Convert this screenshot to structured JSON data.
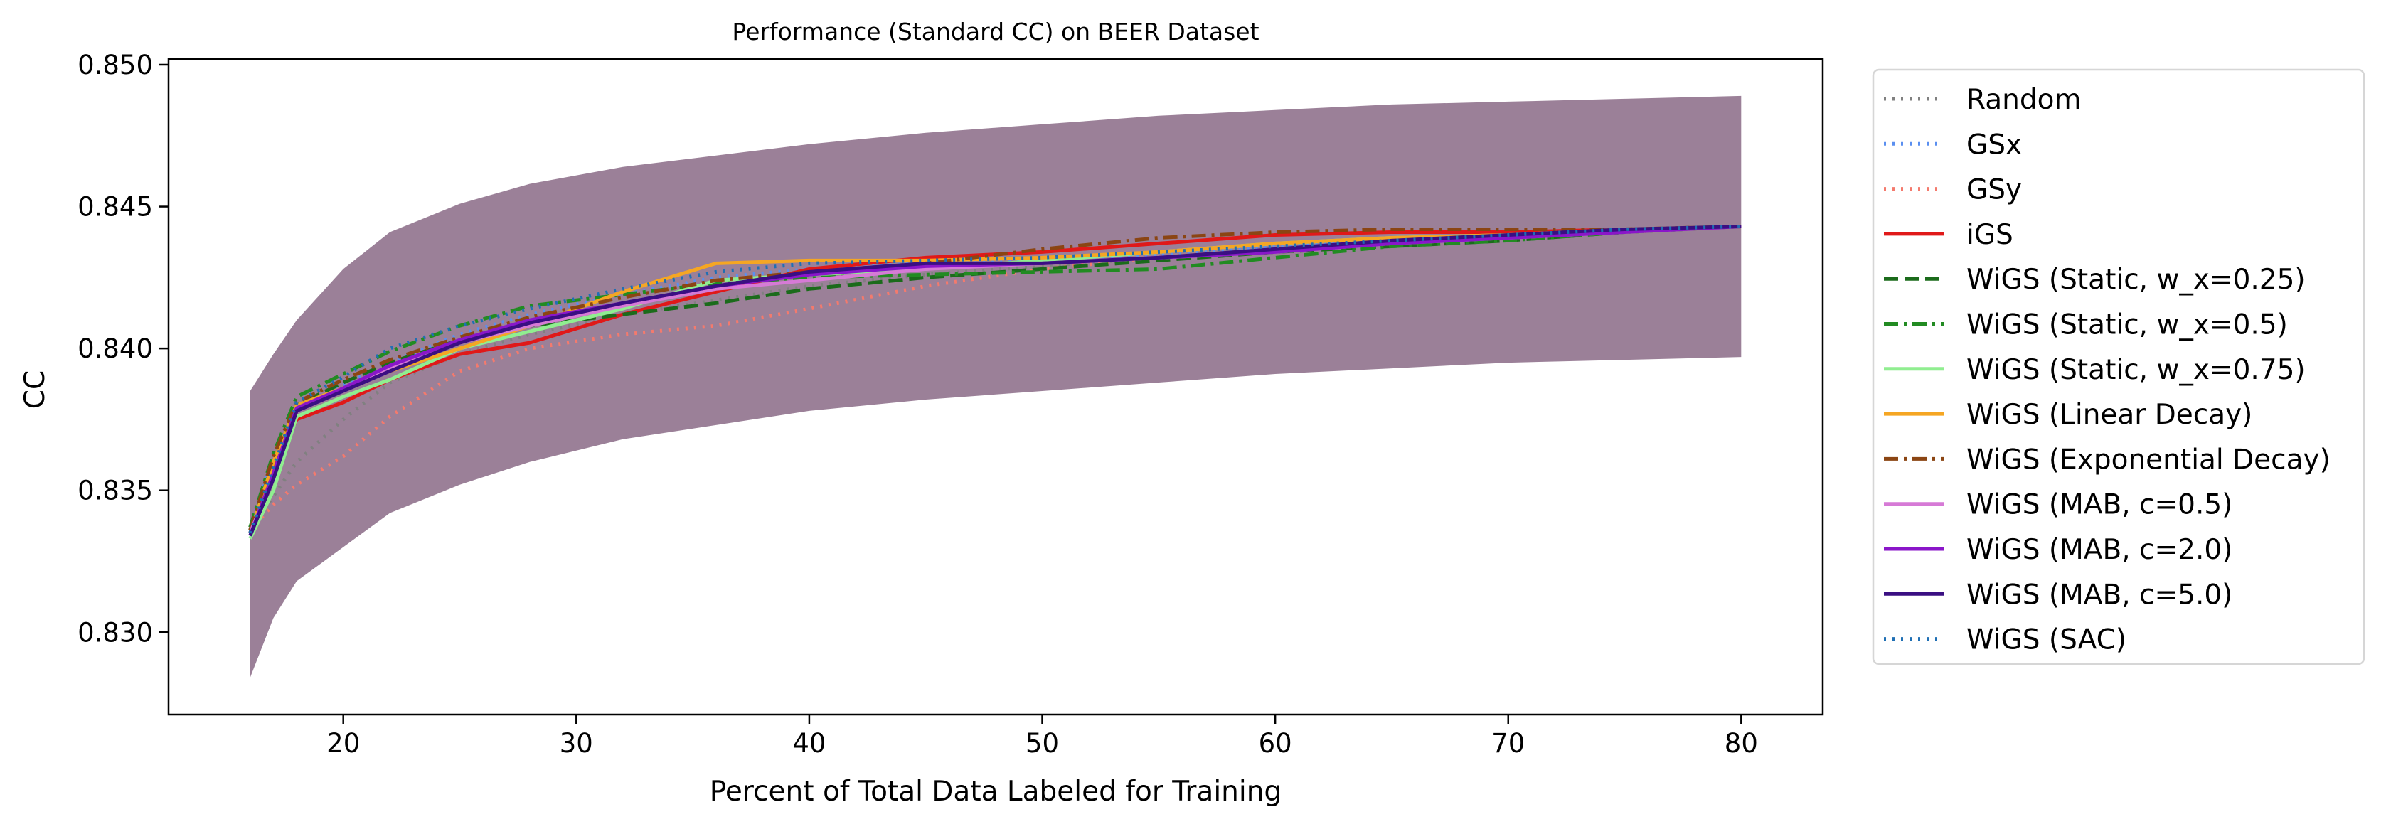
{
  "chart_data": {
    "type": "line",
    "title": "Performance (Standard CC) on BEER Dataset",
    "xlabel": "Percent of Total Data Labeled for Training",
    "ylabel": "CC",
    "xlim": [
      12.5,
      83.5
    ],
    "ylim": [
      0.8271,
      0.8502
    ],
    "xticks": [
      20,
      30,
      40,
      50,
      60,
      70,
      80
    ],
    "yticks": [
      "0.830",
      "0.835",
      "0.840",
      "0.845",
      "0.850"
    ],
    "grid": false,
    "legend": "outside-right",
    "band": {
      "x": [
        16,
        17,
        18,
        20,
        22,
        25,
        28,
        32,
        36,
        40,
        45,
        50,
        55,
        60,
        65,
        70,
        75,
        80
      ],
      "lower": [
        0.8284,
        0.8305,
        0.8318,
        0.833,
        0.8342,
        0.8352,
        0.836,
        0.8368,
        0.8373,
        0.8378,
        0.8382,
        0.8385,
        0.8388,
        0.8391,
        0.8393,
        0.8395,
        0.8396,
        0.8397
      ],
      "upper": [
        0.8385,
        0.8398,
        0.841,
        0.8428,
        0.8441,
        0.8451,
        0.8458,
        0.8464,
        0.8468,
        0.8472,
        0.8476,
        0.8479,
        0.8482,
        0.8484,
        0.8486,
        0.8487,
        0.8488,
        0.8489
      ],
      "color": "#8a6a86"
    },
    "series": [
      {
        "name": "Random",
        "color": "#808080",
        "style": "dotted",
        "x": [
          16,
          17,
          18,
          20,
          22,
          25,
          28,
          32,
          36,
          40,
          45,
          50,
          55,
          60,
          65,
          70,
          75,
          80
        ],
        "y": [
          0.8336,
          0.8348,
          0.836,
          0.8375,
          0.8388,
          0.8398,
          0.8405,
          0.8412,
          0.8417,
          0.8422,
          0.8426,
          0.8429,
          0.8432,
          0.8435,
          0.8437,
          0.8439,
          0.8441,
          0.8443
        ]
      },
      {
        "name": "GSx",
        "color": "#5a8ff0",
        "style": "dotted",
        "x": [
          16,
          17,
          18,
          20,
          22,
          25,
          28,
          32,
          36,
          40,
          45,
          50,
          55,
          60,
          65,
          70,
          75,
          80
        ],
        "y": [
          0.8337,
          0.8362,
          0.8378,
          0.8387,
          0.8395,
          0.8405,
          0.8412,
          0.8419,
          0.8425,
          0.8428,
          0.843,
          0.8431,
          0.8433,
          0.8436,
          0.8438,
          0.844,
          0.8442,
          0.8443
        ]
      },
      {
        "name": "GSy",
        "color": "#f47a6d",
        "style": "dotted",
        "x": [
          16,
          17,
          18,
          20,
          22,
          25,
          28,
          32,
          36,
          40,
          45,
          50,
          55,
          60,
          65,
          70,
          75,
          80
        ],
        "y": [
          0.8336,
          0.8345,
          0.8352,
          0.8362,
          0.8376,
          0.8392,
          0.84,
          0.8405,
          0.8408,
          0.8414,
          0.8422,
          0.8428,
          0.8432,
          0.8435,
          0.8437,
          0.8439,
          0.8441,
          0.8443
        ]
      },
      {
        "name": "iGS",
        "color": "#e01919",
        "style": "solid",
        "x": [
          16,
          17,
          18,
          20,
          22,
          25,
          28,
          32,
          36,
          40,
          45,
          50,
          55,
          60,
          65,
          70,
          75,
          80
        ],
        "y": [
          0.8335,
          0.8358,
          0.8375,
          0.8381,
          0.8389,
          0.8398,
          0.8402,
          0.8412,
          0.842,
          0.8428,
          0.8432,
          0.8434,
          0.8437,
          0.844,
          0.8441,
          0.8441,
          0.8442,
          0.8443
        ]
      },
      {
        "name": "WiGS (Static, w_x=0.25)",
        "color": "#1b6b1b",
        "style": "dashed",
        "x": [
          16,
          17,
          18,
          20,
          22,
          25,
          28,
          32,
          36,
          40,
          45,
          50,
          55,
          60,
          65,
          70,
          75,
          80
        ],
        "y": [
          0.8336,
          0.836,
          0.838,
          0.8388,
          0.8395,
          0.8403,
          0.8408,
          0.8412,
          0.8416,
          0.8421,
          0.8425,
          0.8428,
          0.8431,
          0.8434,
          0.8436,
          0.8438,
          0.8441,
          0.8443
        ]
      },
      {
        "name": "WiGS (Static, w_x=0.5)",
        "color": "#228b22",
        "style": "dashdot",
        "x": [
          16,
          17,
          18,
          20,
          22,
          25,
          28,
          32,
          36,
          40,
          45,
          50,
          55,
          60,
          65,
          70,
          75,
          80
        ],
        "y": [
          0.8337,
          0.8363,
          0.8383,
          0.8391,
          0.8399,
          0.8408,
          0.8415,
          0.8419,
          0.8423,
          0.8425,
          0.8426,
          0.8427,
          0.8428,
          0.8432,
          0.8436,
          0.8438,
          0.8441,
          0.8443
        ]
      },
      {
        "name": "WiGS (Static, w_x=0.75)",
        "color": "#90ee90",
        "style": "solid",
        "x": [
          16,
          17,
          18,
          20,
          22,
          25,
          28,
          32,
          36,
          40,
          45,
          50,
          55,
          60,
          65,
          70,
          75,
          80
        ],
        "y": [
          0.8333,
          0.835,
          0.8376,
          0.8383,
          0.8389,
          0.84,
          0.8406,
          0.8414,
          0.8424,
          0.8426,
          0.8428,
          0.8431,
          0.8434,
          0.8437,
          0.8439,
          0.844,
          0.8442,
          0.8443
        ]
      },
      {
        "name": "WiGS (Linear Decay)",
        "color": "#f5a623",
        "style": "solid",
        "x": [
          16,
          17,
          18,
          20,
          22,
          25,
          28,
          32,
          36,
          40,
          45,
          50,
          55,
          60,
          65,
          70,
          75,
          80
        ],
        "y": [
          0.8335,
          0.836,
          0.838,
          0.8386,
          0.8392,
          0.84,
          0.8408,
          0.842,
          0.843,
          0.8431,
          0.8431,
          0.8432,
          0.8434,
          0.8437,
          0.8439,
          0.844,
          0.8442,
          0.8443
        ]
      },
      {
        "name": "WiGS (Exponential Decay)",
        "color": "#8b4513",
        "style": "dashdot",
        "x": [
          16,
          17,
          18,
          20,
          22,
          25,
          28,
          32,
          36,
          40,
          45,
          50,
          55,
          60,
          65,
          70,
          75,
          80
        ],
        "y": [
          0.8336,
          0.8362,
          0.8381,
          0.8389,
          0.8396,
          0.8404,
          0.8411,
          0.8418,
          0.8424,
          0.8427,
          0.843,
          0.8435,
          0.8439,
          0.8441,
          0.8442,
          0.8442,
          0.8442,
          0.8443
        ]
      },
      {
        "name": "WiGS (MAB, c=0.5)",
        "color": "#d67ad6",
        "style": "solid",
        "x": [
          16,
          17,
          18,
          20,
          22,
          25,
          28,
          32,
          36,
          40,
          45,
          50,
          55,
          60,
          65,
          70,
          75,
          80
        ],
        "y": [
          0.8335,
          0.8355,
          0.8378,
          0.8385,
          0.8393,
          0.8402,
          0.8408,
          0.8415,
          0.8421,
          0.8424,
          0.8428,
          0.843,
          0.8432,
          0.8434,
          0.8437,
          0.8439,
          0.8441,
          0.8443
        ]
      },
      {
        "name": "WiGS (MAB, c=2.0)",
        "color": "#8a16c9",
        "style": "solid",
        "x": [
          16,
          17,
          18,
          20,
          22,
          25,
          28,
          32,
          36,
          40,
          45,
          50,
          55,
          60,
          65,
          70,
          75,
          80
        ],
        "y": [
          0.8334,
          0.8356,
          0.8379,
          0.8386,
          0.8394,
          0.8403,
          0.841,
          0.8416,
          0.8422,
          0.8426,
          0.8429,
          0.843,
          0.8432,
          0.8434,
          0.8437,
          0.8439,
          0.8441,
          0.8443
        ]
      },
      {
        "name": "WiGS (MAB, c=5.0)",
        "color": "#3a0f82",
        "style": "solid",
        "x": [
          16,
          17,
          18,
          20,
          22,
          25,
          28,
          32,
          36,
          40,
          45,
          50,
          55,
          60,
          65,
          70,
          75,
          80
        ],
        "y": [
          0.8334,
          0.8354,
          0.8378,
          0.8385,
          0.8392,
          0.8402,
          0.8409,
          0.8416,
          0.8422,
          0.8427,
          0.843,
          0.843,
          0.8432,
          0.8435,
          0.8438,
          0.844,
          0.8442,
          0.8443
        ]
      },
      {
        "name": "WiGS (SAC)",
        "color": "#1f6fb4",
        "style": "dotted",
        "x": [
          16,
          17,
          18,
          20,
          22,
          25,
          28,
          32,
          36,
          40,
          45,
          50,
          55,
          60,
          65,
          70,
          75,
          80
        ],
        "y": [
          0.8335,
          0.8358,
          0.8381,
          0.839,
          0.84,
          0.8408,
          0.8414,
          0.8421,
          0.8427,
          0.843,
          0.8431,
          0.8432,
          0.8434,
          0.8436,
          0.8438,
          0.844,
          0.8442,
          0.8443
        ]
      }
    ]
  }
}
